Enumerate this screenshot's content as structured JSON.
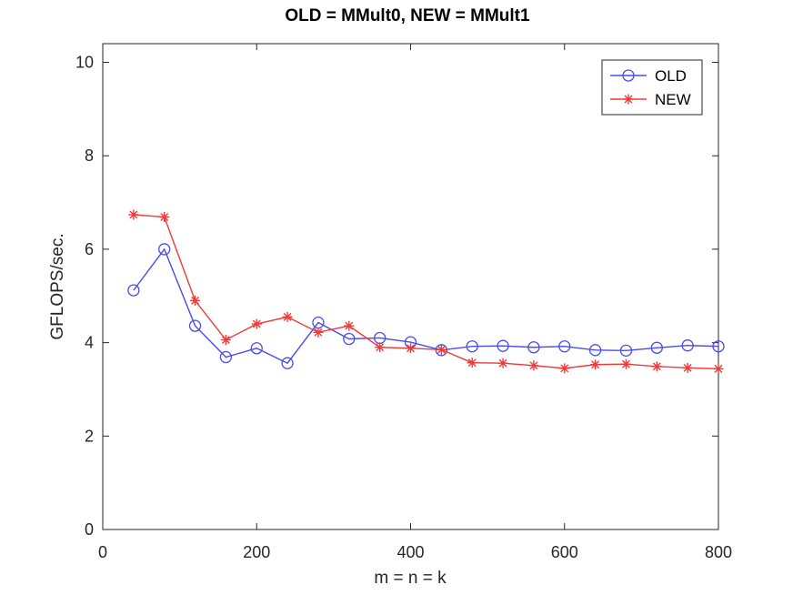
{
  "chart_data": {
    "type": "line",
    "title": "OLD = MMult0, NEW = MMult1",
    "xlabel": "m = n = k",
    "ylabel": "GFLOPS/sec.",
    "xlim": [
      0,
      800
    ],
    "ylim": [
      0,
      10.4
    ],
    "xticks": [
      0,
      200,
      400,
      600,
      800
    ],
    "yticks": [
      0,
      2,
      4,
      6,
      8,
      10
    ],
    "grid": false,
    "legend_position": "top-right",
    "x": [
      40,
      80,
      120,
      160,
      200,
      240,
      280,
      320,
      360,
      400,
      440,
      480,
      520,
      560,
      600,
      640,
      680,
      720,
      760,
      800
    ],
    "series": [
      {
        "name": "OLD",
        "color": "#4a4aee",
        "marker": "circle",
        "values": [
          5.12,
          6.0,
          4.36,
          3.69,
          3.88,
          3.56,
          4.43,
          4.08,
          4.1,
          4.01,
          3.84,
          3.92,
          3.93,
          3.9,
          3.92,
          3.84,
          3.83,
          3.89,
          3.94,
          3.92
        ]
      },
      {
        "name": "NEW",
        "color": "#ee3a3a",
        "marker": "star",
        "values": [
          6.74,
          6.69,
          4.9,
          4.06,
          4.4,
          4.55,
          4.22,
          4.36,
          3.9,
          3.88,
          3.85,
          3.57,
          3.56,
          3.51,
          3.45,
          3.53,
          3.54,
          3.49,
          3.46,
          3.44
        ]
      }
    ]
  }
}
